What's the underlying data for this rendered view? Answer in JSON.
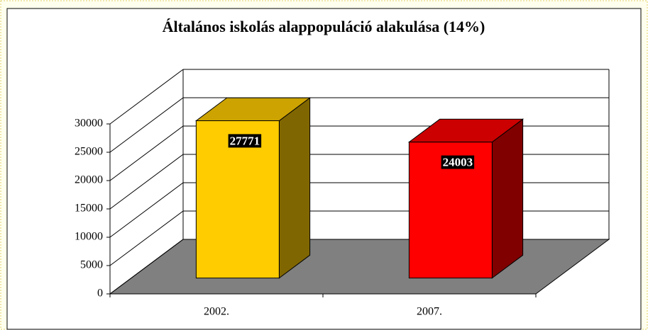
{
  "chart_data": {
    "type": "bar3d",
    "title": "Általános iskolás alappopuláció alakulása (14%)",
    "categories": [
      "2002.",
      "2007."
    ],
    "series": [
      {
        "values": [
          27771,
          24003
        ],
        "colors": [
          "#FFCC00",
          "#FF0000"
        ]
      }
    ],
    "ylim": [
      0,
      30000
    ],
    "yticks": [
      0,
      5000,
      10000,
      15000,
      20000,
      25000,
      30000
    ],
    "grid": true
  }
}
